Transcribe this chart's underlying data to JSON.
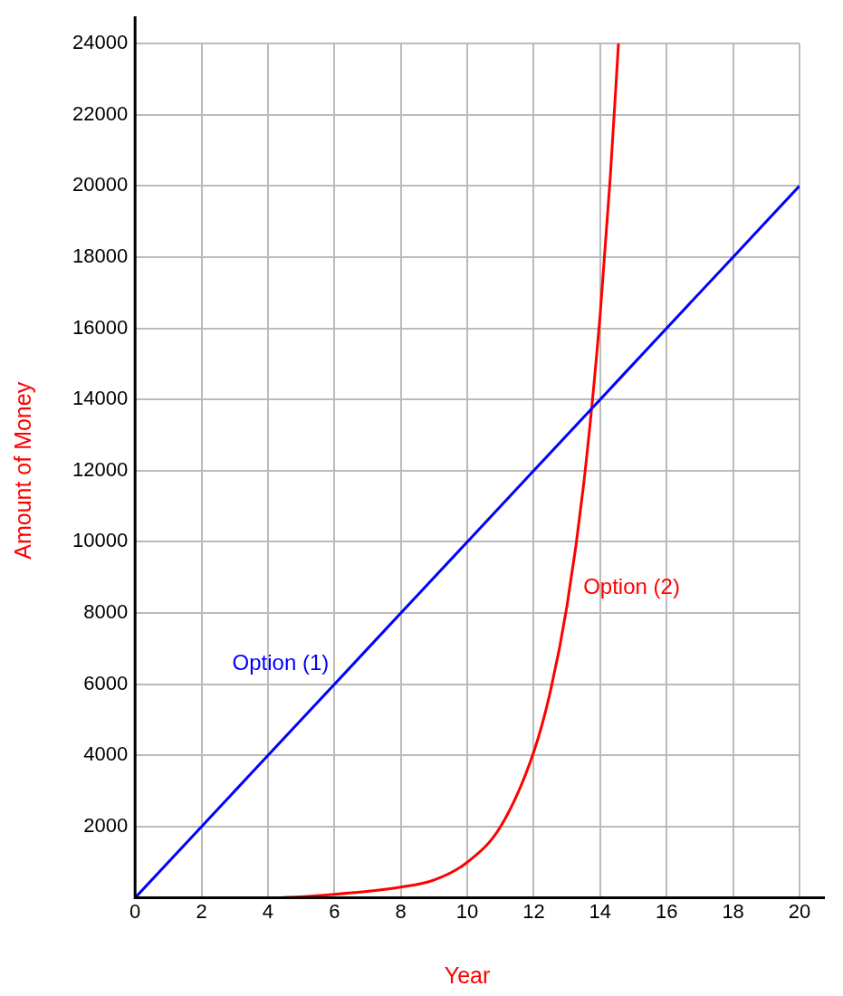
{
  "chart_data": {
    "type": "line",
    "xlabel": "Year",
    "ylabel": "Amount of Money",
    "xlim": [
      0,
      20
    ],
    "xticks": [
      0,
      2,
      4,
      6,
      8,
      10,
      12,
      14,
      16,
      18,
      20
    ],
    "ylim": [
      0,
      24000
    ],
    "yticks": [
      {
        "value": 0,
        "label": null
      },
      2000,
      4000,
      6000,
      8000,
      10000,
      12000,
      14000,
      16000,
      18000,
      20000,
      22000,
      24000
    ],
    "grid": true,
    "legend": false,
    "marker": "none",
    "line_style": "solid",
    "series": [
      {
        "name": "Option (1)",
        "color": "#0000ff",
        "x": [
          0,
          2,
          4,
          6,
          8,
          10,
          12,
          14,
          16,
          18,
          20
        ],
        "values": [
          0,
          2000,
          4000,
          6000,
          8000,
          10000,
          12000,
          14000,
          16000,
          18000,
          20000
        ]
      },
      {
        "name": "Option (2)",
        "color": "#ff0000",
        "x": [
          0,
          2,
          4,
          6,
          8,
          9,
          10,
          11,
          12,
          12.5,
          13,
          13.5,
          14,
          14.3,
          14.55
        ],
        "values": [
          0,
          0,
          0,
          100,
          300,
          500,
          1000,
          2000,
          4100,
          5800,
          8200,
          11600,
          16400,
          20200,
          24000
        ]
      }
    ]
  }
}
